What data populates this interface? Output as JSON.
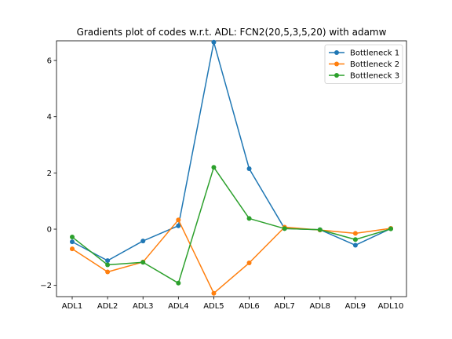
{
  "chart_data": {
    "type": "line",
    "title": "Gradients plot of codes w.r.t. ADL: FCN2(20,5,3,5,20) with adamw",
    "xlabel": "",
    "ylabel": "",
    "categories": [
      "ADL1",
      "ADL2",
      "ADL3",
      "ADL4",
      "ADL5",
      "ADL6",
      "ADL7",
      "ADL8",
      "ADL9",
      "ADL10"
    ],
    "ylim": [
      -2.4,
      6.7
    ],
    "yticks": [
      -2,
      0,
      2,
      4,
      6
    ],
    "ytick_labels": [
      "−2",
      "0",
      "2",
      "4",
      "6"
    ],
    "grid": false,
    "legend_position": "top-right",
    "series": [
      {
        "name": "Bottleneck 1",
        "color": "#1f77b4",
        "values": [
          -0.45,
          -1.12,
          -0.42,
          0.12,
          6.65,
          2.15,
          0.02,
          -0.02,
          -0.57,
          0.02
        ]
      },
      {
        "name": "Bottleneck 2",
        "color": "#ff7f0e",
        "values": [
          -0.7,
          -1.52,
          -1.17,
          0.33,
          -2.28,
          -1.2,
          0.07,
          -0.03,
          -0.15,
          0.03
        ]
      },
      {
        "name": "Bottleneck 3",
        "color": "#2ca02c",
        "values": [
          -0.28,
          -1.27,
          -1.18,
          -1.92,
          2.2,
          0.38,
          0.02,
          -0.02,
          -0.37,
          0.01
        ]
      }
    ]
  }
}
